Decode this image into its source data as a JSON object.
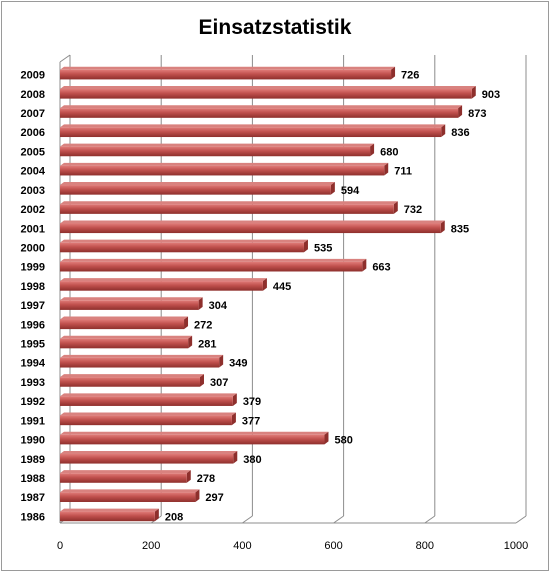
{
  "chart_data": {
    "type": "bar",
    "orientation": "horizontal",
    "title": "Einsatzstatistik",
    "xlabel": "",
    "ylabel": "",
    "xlim": [
      0,
      1000
    ],
    "xticks": [
      0,
      200,
      400,
      600,
      800,
      1000
    ],
    "grid": true,
    "legend": "none",
    "bar_color": "#c0504d",
    "categories": [
      "2009",
      "2008",
      "2007",
      "2006",
      "2005",
      "2004",
      "2003",
      "2002",
      "2001",
      "2000",
      "1999",
      "1998",
      "1997",
      "1996",
      "1995",
      "1994",
      "1993",
      "1992",
      "1991",
      "1990",
      "1989",
      "1988",
      "1987",
      "1986"
    ],
    "values": [
      726,
      903,
      873,
      836,
      680,
      711,
      594,
      732,
      835,
      535,
      663,
      445,
      304,
      272,
      281,
      349,
      307,
      379,
      377,
      580,
      380,
      278,
      297,
      208
    ]
  }
}
